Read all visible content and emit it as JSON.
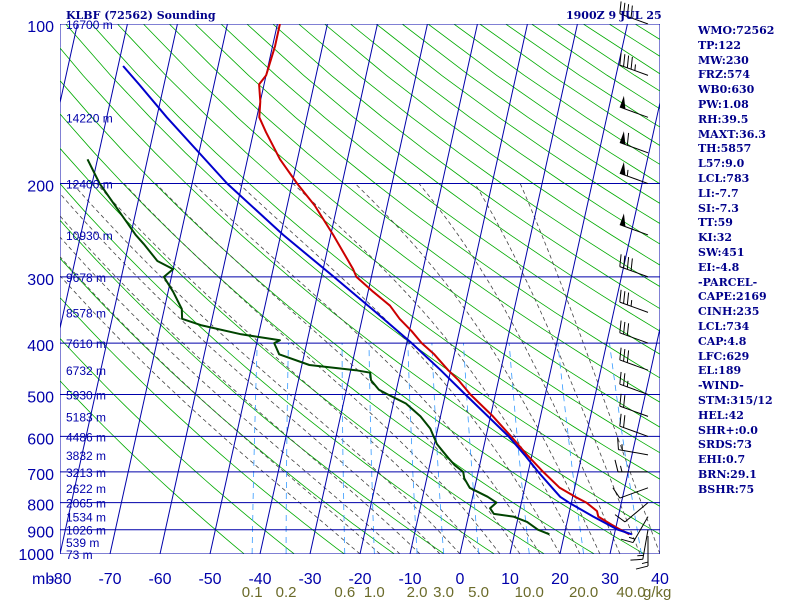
{
  "header": {
    "station_title": "KLBF (72562) Sounding",
    "valid_time": "1900Z  9 JUL 25"
  },
  "colors": {
    "background": "#ffffff",
    "grid": "#0000aa",
    "dry_adiabat": "#00aa00",
    "moist_adiabat": "#444444",
    "mixing_ratio": "#3399ff",
    "temperature": "#cc0000",
    "dewpoint": "#004400",
    "parcel": "#0000cc",
    "text": "#00008b",
    "mixing_label": "#6b6b2a"
  },
  "indices": [
    "WMO:72562",
    "TP:122",
    "MW:230",
    "FRZ:574",
    "WB0:630",
    "PW:1.08",
    "RH:39.5",
    "MAXT:36.3",
    "TH:5857",
    "L57:9.0",
    "LCL:783",
    "LI:-7.7",
    "SI:-7.3",
    "TT:59",
    "KI:32",
    "SW:451",
    "EI:-4.8",
    "-PARCEL-",
    "CAPE:2169",
    "CINH:235",
    "LCL:734",
    "CAP:4.8",
    "LFC:629",
    "EL:189",
    "-WIND-",
    "STM:315/12",
    "HEL:42",
    "SHR+:0.0",
    "SRDS:73",
    "EHI:0.7",
    "BRN:29.1",
    "BSHR:75"
  ],
  "chart_data": {
    "type": "line",
    "title": "KLBF (72562) Sounding",
    "axes": {
      "x_unit_label": "mb",
      "temperature_ticks": [
        -80,
        -70,
        -60,
        -50,
        -40,
        -30,
        -20,
        -10,
        0,
        10,
        20,
        30,
        40
      ],
      "temperature_tick_labels": [
        "-80",
        "-70",
        "-60",
        "-50",
        "-40",
        "-30",
        "-20",
        "-10",
        "0",
        "10",
        "20",
        "30",
        "40"
      ],
      "pressure_ticks": [
        100,
        200,
        300,
        400,
        500,
        600,
        700,
        800,
        900,
        1000
      ],
      "pressure_tick_labels": [
        "100",
        "200",
        "300",
        "400",
        "500",
        "600",
        "700",
        "800",
        "900",
        "1000"
      ],
      "xlim": [
        -80,
        40
      ],
      "ylim": [
        1000,
        100
      ],
      "y_scale": "log",
      "skew": true,
      "grid": true
    },
    "height_labels": [
      {
        "p": 100,
        "label": "16700 m"
      },
      {
        "p": 150,
        "label": "14220 m"
      },
      {
        "p": 200,
        "label": "12400 m"
      },
      {
        "p": 250,
        "label": "10930 m"
      },
      {
        "p": 300,
        "label": "9678 m"
      },
      {
        "p": 350,
        "label": "8578 m"
      },
      {
        "p": 400,
        "label": "7610 m"
      },
      {
        "p": 450,
        "label": "6732 m"
      },
      {
        "p": 500,
        "label": "5930 m"
      },
      {
        "p": 550,
        "label": "5183 m"
      },
      {
        "p": 600,
        "label": "4486 m"
      },
      {
        "p": 650,
        "label": "3832 m"
      },
      {
        "p": 700,
        "label": "3213 m"
      },
      {
        "p": 750,
        "label": "2622 m"
      },
      {
        "p": 800,
        "label": "2065 m"
      },
      {
        "p": 850,
        "label": "1534 m"
      },
      {
        "p": 900,
        "label": "1026 m"
      },
      {
        "p": 950,
        "label": "539 m"
      },
      {
        "p": 1000,
        "label": "73 m"
      }
    ],
    "mixing_ratio_labels": [
      "0.1",
      "0.2",
      "0.6",
      "1.0",
      "2.0",
      "3.0",
      "5.0",
      "10.0",
      "20.0",
      "40.0"
    ],
    "mixing_ratio_values": [
      0.1,
      0.2,
      0.6,
      1.0,
      2.0,
      3.0,
      5.0,
      10.0,
      20.0,
      40.0
    ],
    "mixing_ratio_unit": "g/kg",
    "series": [
      {
        "key": "temperature",
        "points": [
          [
            918,
            33.0
          ],
          [
            900,
            31.0
          ],
          [
            880,
            29.0
          ],
          [
            850,
            26.0
          ],
          [
            830,
            25.5
          ],
          [
            800,
            23.0
          ],
          [
            780,
            20.5
          ],
          [
            750,
            17.0
          ],
          [
            700,
            13.0
          ],
          [
            650,
            9.0
          ],
          [
            600,
            5.0
          ],
          [
            550,
            0.5
          ],
          [
            500,
            -5.0
          ],
          [
            470,
            -8.0
          ],
          [
            450,
            -10.5
          ],
          [
            420,
            -14.0
          ],
          [
            400,
            -17.0
          ],
          [
            380,
            -19.5
          ],
          [
            360,
            -22.5
          ],
          [
            340,
            -25.0
          ],
          [
            320,
            -29.0
          ],
          [
            300,
            -33.0
          ],
          [
            290,
            -34.0
          ],
          [
            250,
            -39.5
          ],
          [
            220,
            -44.5
          ],
          [
            200,
            -49.0
          ],
          [
            180,
            -53.5
          ],
          [
            160,
            -57.5
          ],
          [
            150,
            -59.5
          ],
          [
            140,
            -60.0
          ],
          [
            130,
            -61.0
          ],
          [
            125,
            -60.0
          ],
          [
            110,
            -59.5
          ],
          [
            100,
            -59.5
          ]
        ]
      },
      {
        "key": "dewpoint",
        "points": [
          [
            918,
            17.0
          ],
          [
            900,
            14.5
          ],
          [
            870,
            12.0
          ],
          [
            850,
            9.0
          ],
          [
            840,
            5.0
          ],
          [
            820,
            4.0
          ],
          [
            800,
            5.0
          ],
          [
            780,
            3.0
          ],
          [
            750,
            -1.0
          ],
          [
            720,
            -2.5
          ],
          [
            700,
            -3.0
          ],
          [
            680,
            -5.0
          ],
          [
            660,
            -6.5
          ],
          [
            640,
            -8.0
          ],
          [
            620,
            -9.5
          ],
          [
            600,
            -10.5
          ],
          [
            580,
            -11.5
          ],
          [
            550,
            -14.0
          ],
          [
            520,
            -17.5
          ],
          [
            500,
            -21.5
          ],
          [
            490,
            -23.5
          ],
          [
            470,
            -25.5
          ],
          [
            455,
            -26.0
          ],
          [
            450,
            -29.0
          ],
          [
            440,
            -38.5
          ],
          [
            420,
            -45.0
          ],
          [
            400,
            -46.5
          ],
          [
            395,
            -45.5
          ],
          [
            392,
            -48.0
          ],
          [
            385,
            -53.5
          ],
          [
            370,
            -62.0
          ],
          [
            360,
            -66.0
          ],
          [
            345,
            -66.5
          ],
          [
            320,
            -69.0
          ],
          [
            300,
            -71.5
          ],
          [
            290,
            -70.0
          ],
          [
            280,
            -73.5
          ],
          [
            260,
            -77.0
          ],
          [
            250,
            -79.0
          ],
          [
            200,
            -88.5
          ],
          [
            180,
            -92.0
          ]
        ]
      },
      {
        "key": "parcel",
        "points": [
          [
            918,
            33.5
          ],
          [
            900,
            30.5
          ],
          [
            850,
            25.0
          ],
          [
            800,
            19.5
          ],
          [
            780,
            17.5
          ],
          [
            750,
            15.5
          ],
          [
            700,
            12.0
          ],
          [
            650,
            8.5
          ],
          [
            600,
            4.5
          ],
          [
            550,
            -0.5
          ],
          [
            500,
            -6.0
          ],
          [
            450,
            -12.0
          ],
          [
            400,
            -19.0
          ],
          [
            350,
            -27.5
          ],
          [
            300,
            -37.5
          ],
          [
            250,
            -49.5
          ],
          [
            200,
            -63.0
          ],
          [
            150,
            -78.0
          ],
          [
            130,
            -85.0
          ],
          [
            120,
            -89.0
          ]
        ]
      }
    ],
    "wind_profile": [
      {
        "p": 925,
        "dir": 180,
        "spd": 15
      },
      {
        "p": 900,
        "dir": 190,
        "spd": 15
      },
      {
        "p": 850,
        "dir": 210,
        "spd": 15
      },
      {
        "p": 800,
        "dir": 230,
        "spd": 10
      },
      {
        "p": 750,
        "dir": 250,
        "spd": 10
      },
      {
        "p": 700,
        "dir": 270,
        "spd": 15
      },
      {
        "p": 650,
        "dir": 280,
        "spd": 15
      },
      {
        "p": 600,
        "dir": 290,
        "spd": 20
      },
      {
        "p": 550,
        "dir": 290,
        "spd": 20
      },
      {
        "p": 500,
        "dir": 290,
        "spd": 25
      },
      {
        "p": 450,
        "dir": 290,
        "spd": 30
      },
      {
        "p": 400,
        "dir": 290,
        "spd": 30
      },
      {
        "p": 350,
        "dir": 290,
        "spd": 35
      },
      {
        "p": 300,
        "dir": 290,
        "spd": 40
      },
      {
        "p": 250,
        "dir": 290,
        "spd": 50
      },
      {
        "p": 200,
        "dir": 290,
        "spd": 55
      },
      {
        "p": 175,
        "dir": 290,
        "spd": 60
      },
      {
        "p": 150,
        "dir": 290,
        "spd": 50
      },
      {
        "p": 125,
        "dir": 290,
        "spd": 45
      },
      {
        "p": 100,
        "dir": 290,
        "spd": 40
      }
    ]
  }
}
